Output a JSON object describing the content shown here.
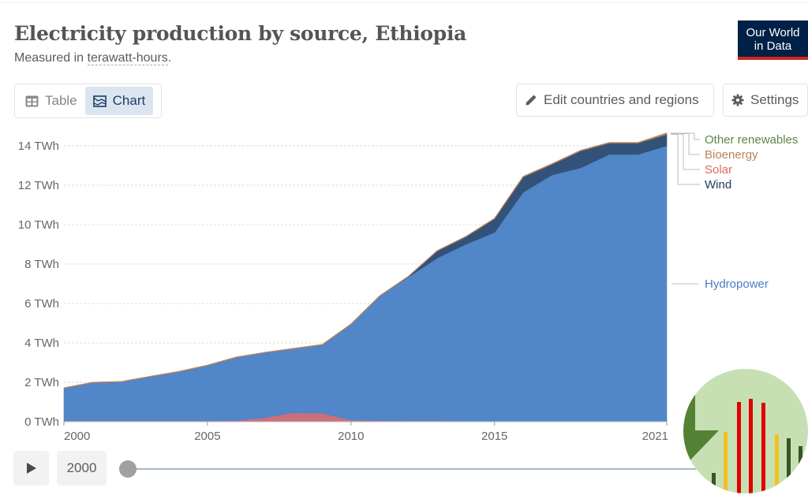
{
  "header": {
    "title": "Electricity production by source, Ethiopia",
    "subtitle_prefix": "Measured in ",
    "subtitle_unit": "terawatt-hours",
    "subtitle_suffix": ".",
    "logo_line1": "Our World",
    "logo_line2": "in Data"
  },
  "toolbar": {
    "table_label": "Table",
    "chart_label": "Chart",
    "active_tab": "Chart",
    "edit_label": "Edit countries and regions",
    "settings_label": "Settings"
  },
  "timeline": {
    "current_year": "2000",
    "play_icon": "play-icon"
  },
  "colors": {
    "hydropower": "#5186c8",
    "wind": "#33527a",
    "solar": "#d6707a",
    "bioenergy": "#c1875a",
    "other_renewables": "#5b8743",
    "bottom_series": "#cd6e7b"
  },
  "chart_data": {
    "type": "area",
    "stacked": true,
    "title": "Electricity production by source, Ethiopia",
    "ylabel": "",
    "xlabel": "",
    "ylim": [
      0,
      14
    ],
    "xlim": [
      2000,
      2021
    ],
    "grid": true,
    "y_ticks": [
      0,
      2,
      4,
      6,
      8,
      10,
      12,
      14
    ],
    "y_tick_labels": [
      "0 TWh",
      "2 TWh",
      "4 TWh",
      "6 TWh",
      "8 TWh",
      "10 TWh",
      "12 TWh",
      "14 TWh"
    ],
    "x_ticks": [
      2000,
      2005,
      2010,
      2015,
      2021
    ],
    "x_tick_labels": [
      "2000",
      "2005",
      "2010",
      "2015",
      "2021"
    ],
    "legend_position": "right",
    "x": [
      2000,
      2001,
      2002,
      2003,
      2004,
      2005,
      2006,
      2007,
      2008,
      2009,
      2010,
      2011,
      2012,
      2013,
      2014,
      2015,
      2016,
      2017,
      2018,
      2019,
      2020,
      2021
    ],
    "series": [
      {
        "name": "",
        "key": "bottom_series",
        "values": [
          0.04,
          0.04,
          0.04,
          0.04,
          0.04,
          0.04,
          0.05,
          0.2,
          0.45,
          0.42,
          0.08,
          0.05,
          0.04,
          0.04,
          0.03,
          0.03,
          0.03,
          0.03,
          0.03,
          0.03,
          0.03,
          0.03
        ]
      },
      {
        "name": "Hydropower",
        "key": "hydropower",
        "values": [
          1.66,
          1.94,
          1.98,
          2.24,
          2.49,
          2.81,
          3.21,
          3.3,
          3.25,
          3.48,
          4.86,
          6.32,
          7.3,
          8.26,
          8.97,
          9.57,
          11.61,
          12.49,
          12.85,
          13.53,
          13.53,
          13.97
        ]
      },
      {
        "name": "Wind",
        "key": "wind",
        "values": [
          0,
          0,
          0,
          0,
          0,
          0,
          0,
          0,
          0,
          0,
          0,
          0,
          0.02,
          0.36,
          0.38,
          0.7,
          0.78,
          0.54,
          0.86,
          0.58,
          0.58,
          0.58
        ]
      },
      {
        "name": "Solar",
        "key": "solar",
        "values": [
          0,
          0,
          0,
          0,
          0,
          0,
          0,
          0,
          0,
          0,
          0,
          0,
          0,
          0,
          0,
          0,
          0,
          0,
          0,
          0,
          0,
          0.01
        ]
      },
      {
        "name": "Bioenergy",
        "key": "bioenergy",
        "values": [
          0.02,
          0.02,
          0.02,
          0.02,
          0.02,
          0.02,
          0.02,
          0.02,
          0.02,
          0.02,
          0.02,
          0.02,
          0.02,
          0.02,
          0.02,
          0.02,
          0.02,
          0.02,
          0.02,
          0.02,
          0.02,
          0.04
        ]
      },
      {
        "name": "Other renewables",
        "key": "other_renewables",
        "values": [
          0,
          0,
          0,
          0,
          0,
          0,
          0,
          0,
          0,
          0,
          0,
          0,
          0,
          0,
          0,
          0,
          0.01,
          0.01,
          0.01,
          0.01,
          0.01,
          0.02
        ]
      }
    ],
    "legend": [
      {
        "label": "Other renewables",
        "key": "other_renewables"
      },
      {
        "label": "Bioenergy",
        "key": "bioenergy"
      },
      {
        "label": "Solar",
        "key": "solar"
      },
      {
        "label": "Wind",
        "key": "wind"
      },
      {
        "label": "Hydropower",
        "key": "hydropower"
      }
    ]
  }
}
